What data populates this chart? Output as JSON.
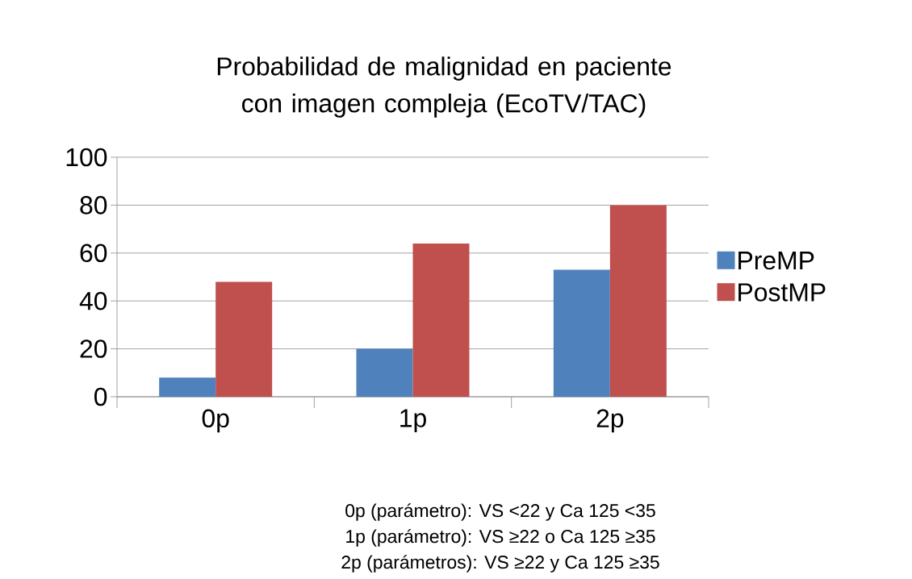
{
  "chart_data": {
    "type": "bar",
    "title": "Probabilidad de malignidad en paciente con imagen compleja (EcoTV/TAC)",
    "categories": [
      "0p",
      "1p",
      "2p"
    ],
    "series": [
      {
        "name": "PreMP",
        "color": "#4f81bd",
        "values": [
          8,
          20,
          53
        ]
      },
      {
        "name": "PostMP",
        "color": "#c0504d",
        "values": [
          48,
          64,
          80
        ]
      }
    ],
    "ylim": [
      0,
      100
    ],
    "yticks": [
      0,
      20,
      40,
      60,
      80,
      100
    ],
    "grid": "y",
    "legend": "right",
    "annotations": [
      "0p (parámetro): VS <22 y Ca 125 <35",
      "1p (parámetro): VS ≥22 o Ca 125 ≥35",
      "2p (parámetros): VS ≥22 y Ca 125 ≥35"
    ]
  }
}
